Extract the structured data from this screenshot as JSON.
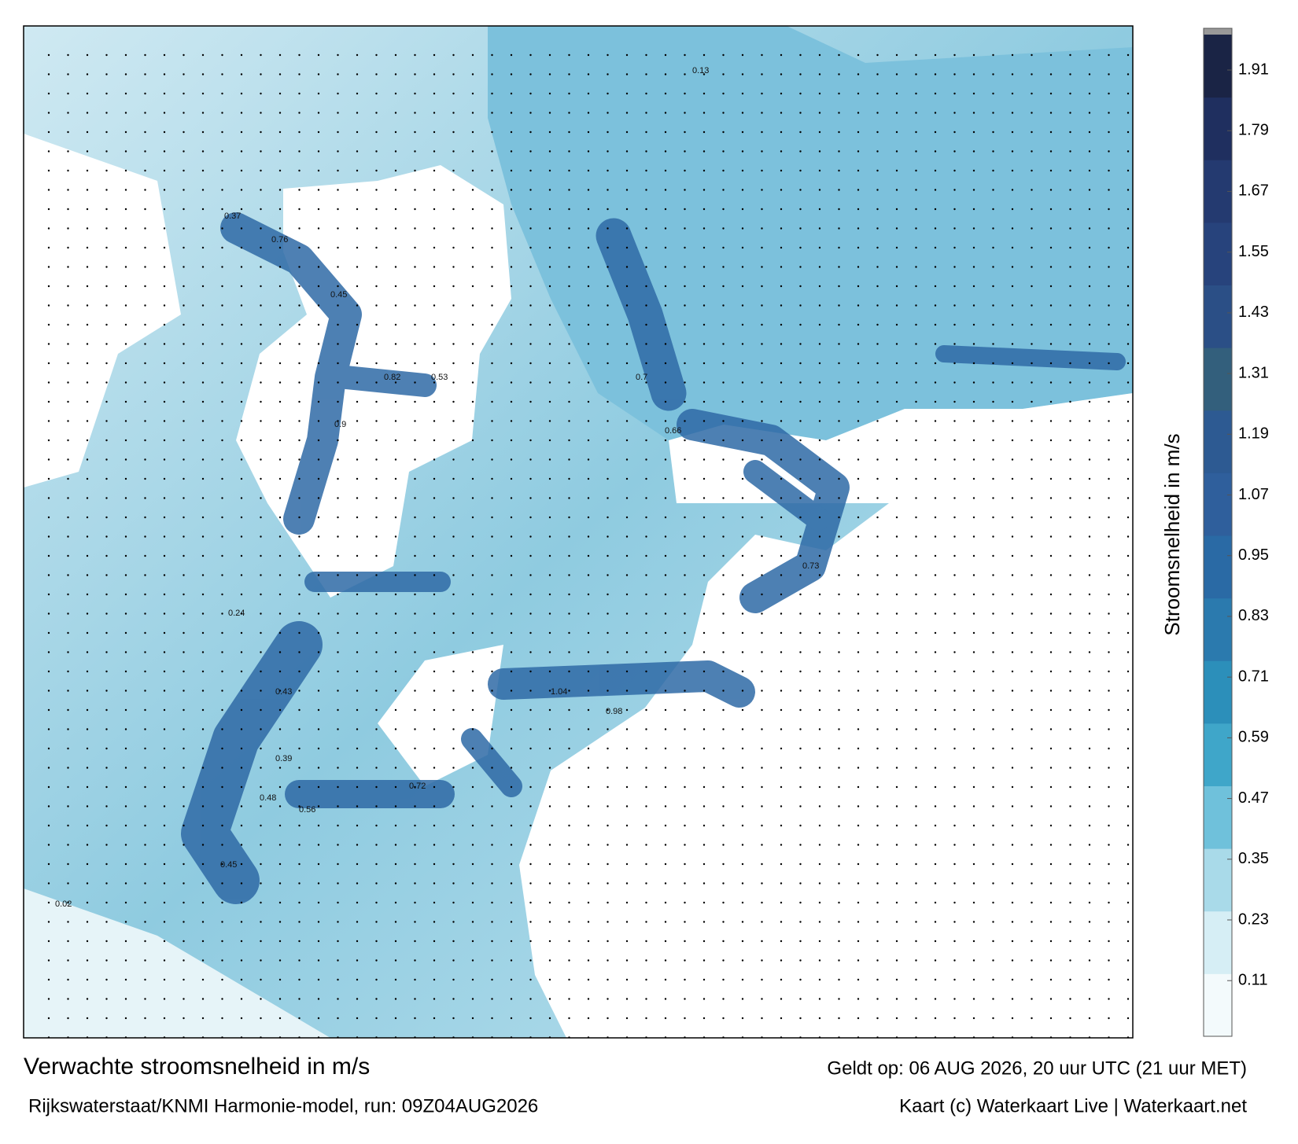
{
  "header": {
    "title": "Verwachte stroomsnelheid in m/s",
    "subtitle": "Rijkswaterstaat/KNMI Harmonie-model, run: 09Z04AUG2026",
    "valid": "Geldt op: 06 AUG 2026, 20 uur UTC (21 uur MET)",
    "credit": "Kaart (c) Waterkaart Live | Waterkaart.net"
  },
  "colorbar": {
    "label": "Stroomsnelheid in m/s",
    "lim": [
      0,
      1.98
    ],
    "ticks": [
      0.11,
      0.23,
      0.35,
      0.47,
      0.59,
      0.71,
      0.83,
      0.95,
      1.07,
      1.19,
      1.31,
      1.43,
      1.55,
      1.67,
      1.79,
      1.91
    ],
    "colors": [
      "#f3fafc",
      "#d6eef5",
      "#a9dae9",
      "#6fc1db",
      "#3fa6c9",
      "#2c8fba",
      "#2b7aae",
      "#2a6aa5",
      "#2f5f9c",
      "#2d5a92",
      "#335f7c",
      "#2b4f86",
      "#27437c",
      "#243a70",
      "#1f2f5f",
      "#1a2445"
    ],
    "cap": "#999999"
  },
  "map_labels": [
    0.37,
    0.76,
    0.82,
    0.53,
    0.9,
    0.45,
    0.7,
    0.66,
    0.73,
    1.04,
    0.98,
    0.43,
    0.48,
    0.39,
    0.72,
    0.56,
    0.45,
    0.24,
    0.02,
    0.13
  ]
}
